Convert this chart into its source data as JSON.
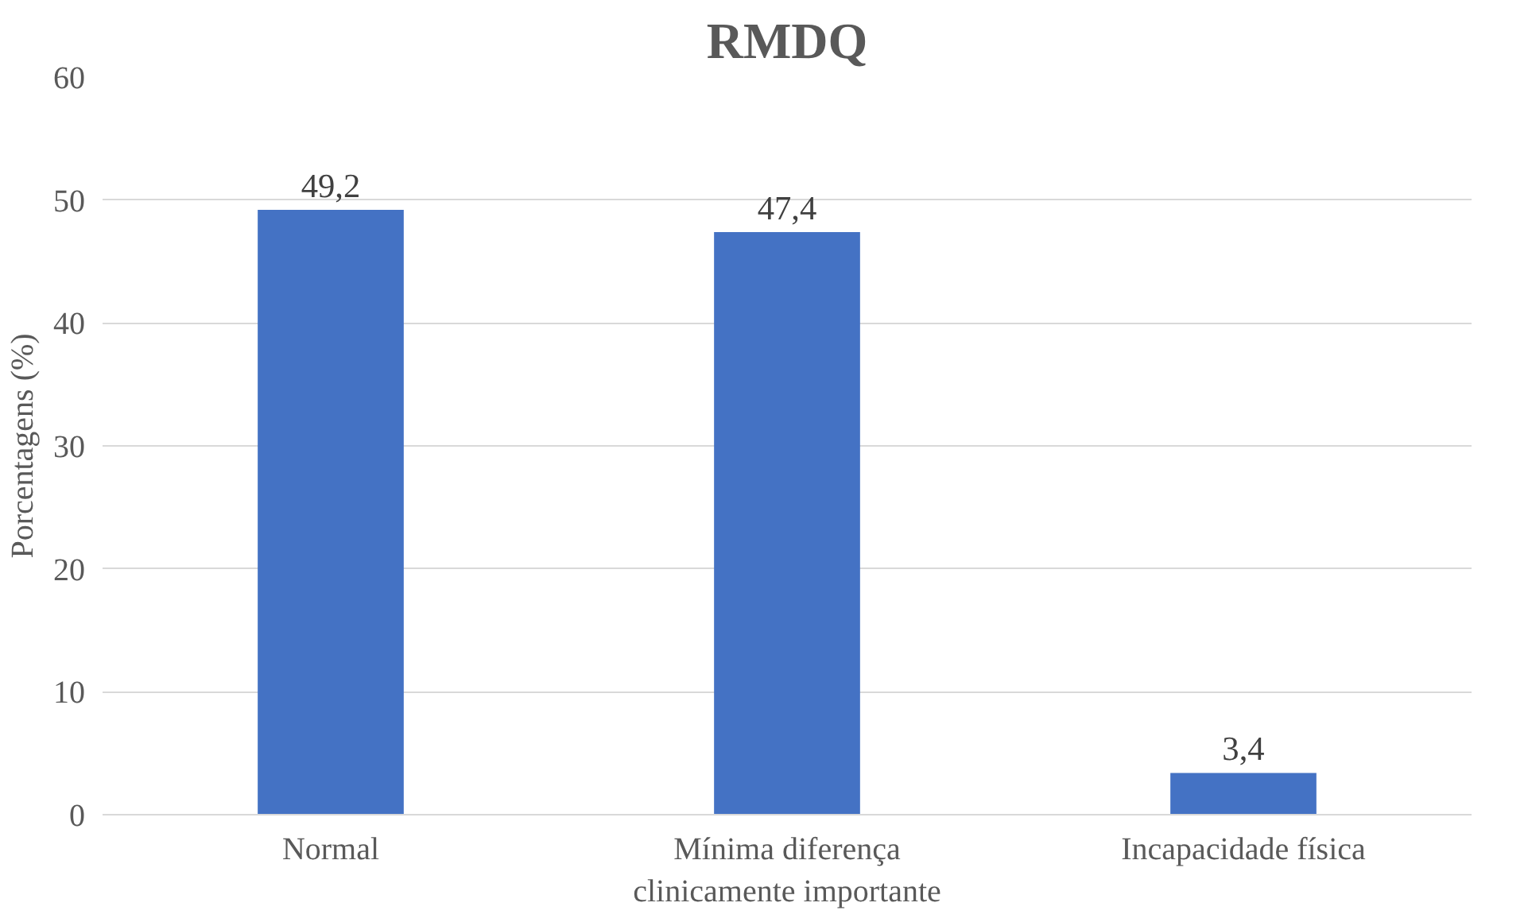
{
  "chart_data": {
    "type": "bar",
    "title": "RMDQ",
    "ylabel": "Porcentagens (%)",
    "categories": [
      "Normal",
      "Mínima diferença\nclinicamente importante",
      "Incapacidade física"
    ],
    "values": [
      49.2,
      47.4,
      3.4
    ],
    "value_labels": [
      "49,2",
      "47,4",
      "3,4"
    ],
    "color": "#4472c4",
    "ylim": [
      0,
      60
    ],
    "yticks": [
      0,
      10,
      20,
      30,
      40,
      50,
      60
    ],
    "grid": "y"
  }
}
